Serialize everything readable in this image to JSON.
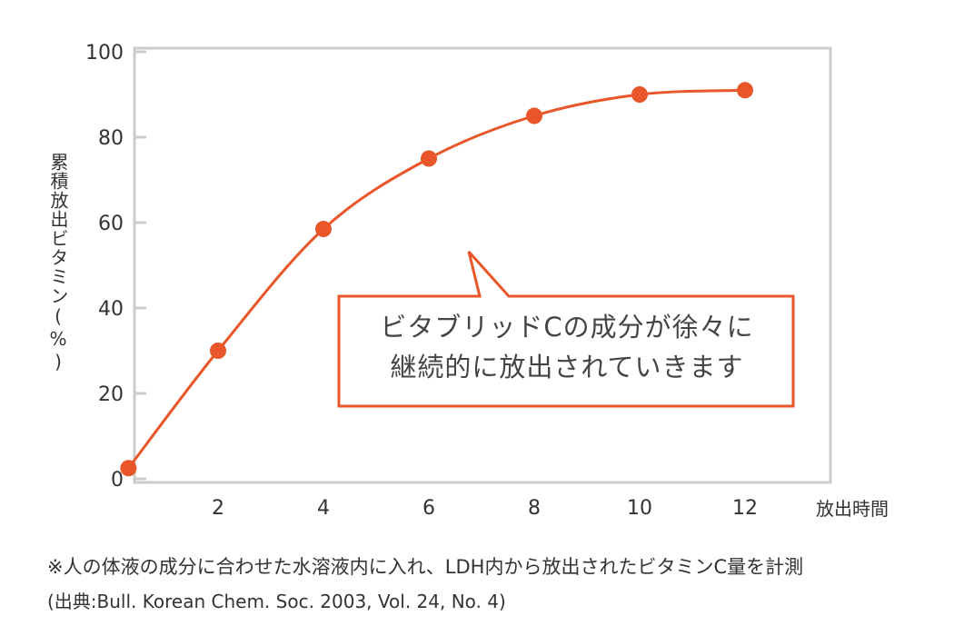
{
  "chart_data": {
    "type": "line",
    "x": [
      0.3,
      2,
      4,
      6,
      8,
      10,
      12
    ],
    "series": [
      {
        "values": [
          2.5,
          30,
          58.5,
          75,
          85,
          90,
          91
        ]
      }
    ],
    "xlabel": "放出時間",
    "ylabel": "累積放出ビタミン(%)",
    "xticks": [
      "2",
      "4",
      "6",
      "8",
      "10",
      "12"
    ],
    "yticks": [
      "0",
      "20",
      "40",
      "60",
      "80",
      "100"
    ],
    "ylim": [
      0,
      100
    ],
    "grid": false,
    "legend": "none",
    "color": "#e8562a"
  },
  "annotation": {
    "line1": "ビタブリッドCの成分が徐々に",
    "line2": "継続的に放出されていきます"
  },
  "footnote": "※人の体液の成分に合わせた水溶液内に入れ、LDH内から放出されたビタミンC量を計測",
  "source": "(出典:Bull. Korean Chem. Soc. 2003, Vol. 24, No. 4)"
}
